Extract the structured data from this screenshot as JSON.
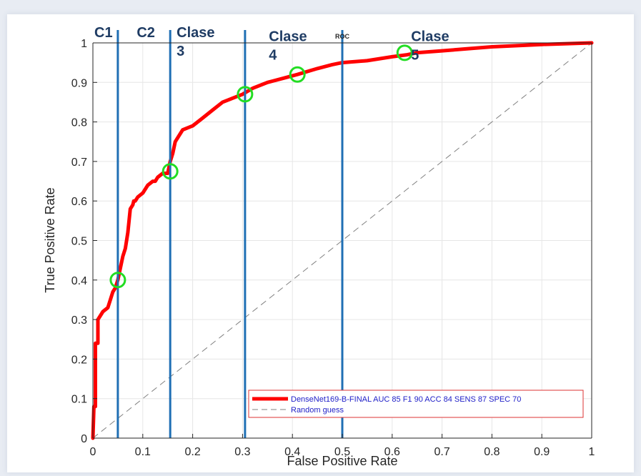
{
  "chart_data": {
    "type": "line",
    "title": "ROC",
    "xlabel": "False Positive Rate",
    "ylabel": "True Positive Rate",
    "xlim": [
      0,
      1
    ],
    "ylim": [
      0,
      1
    ],
    "x_ticks": [
      "0",
      "0.1",
      "0.2",
      "0.3",
      "0.4",
      "0.5",
      "0.6",
      "0.7",
      "0.8",
      "0.9",
      "1"
    ],
    "y_ticks": [
      "0",
      "0.1",
      "0.2",
      "0.3",
      "0.4",
      "0.5",
      "0.6",
      "0.7",
      "0.8",
      "0.9",
      "1"
    ],
    "grid": true,
    "legend_position": "bottom-right",
    "series": [
      {
        "name": "DenseNet169-B-FINAL AUC 85 F1 90 ACC 84 SENS 87 SPEC 70",
        "color": "#ff0000",
        "style": "solid",
        "x": [
          0,
          0.002,
          0.005,
          0.005,
          0.01,
          0.01,
          0.015,
          0.02,
          0.03,
          0.035,
          0.04,
          0.045,
          0.05,
          0.055,
          0.06,
          0.065,
          0.07,
          0.075,
          0.08,
          0.082,
          0.085,
          0.09,
          0.1,
          0.11,
          0.12,
          0.125,
          0.13,
          0.14,
          0.15,
          0.155,
          0.16,
          0.165,
          0.17,
          0.18,
          0.2,
          0.22,
          0.24,
          0.26,
          0.27,
          0.28,
          0.29,
          0.3,
          0.32,
          0.35,
          0.38,
          0.41,
          0.45,
          0.48,
          0.5,
          0.55,
          0.6,
          0.63,
          0.65,
          0.7,
          0.75,
          0.8,
          0.85,
          0.9,
          0.95,
          1.0
        ],
        "y": [
          0,
          0.08,
          0.08,
          0.24,
          0.24,
          0.3,
          0.31,
          0.32,
          0.33,
          0.35,
          0.37,
          0.38,
          0.4,
          0.43,
          0.46,
          0.48,
          0.52,
          0.58,
          0.59,
          0.6,
          0.6,
          0.61,
          0.62,
          0.64,
          0.65,
          0.65,
          0.66,
          0.67,
          0.67,
          0.7,
          0.72,
          0.75,
          0.76,
          0.78,
          0.79,
          0.81,
          0.83,
          0.85,
          0.855,
          0.86,
          0.865,
          0.87,
          0.885,
          0.9,
          0.91,
          0.92,
          0.935,
          0.945,
          0.95,
          0.955,
          0.965,
          0.97,
          0.975,
          0.98,
          0.985,
          0.99,
          0.993,
          0.996,
          0.998,
          1.0
        ]
      },
      {
        "name": "Random guess",
        "color": "#808080",
        "style": "dashed",
        "x": [
          0,
          1
        ],
        "y": [
          0,
          1
        ]
      }
    ],
    "class_lines": {
      "color": "#1f6fb4",
      "x": [
        0.05,
        0.155,
        0.305,
        0.5
      ]
    },
    "class_labels": [
      {
        "lines": [
          "C1"
        ],
        "x": 0.0,
        "y": 1.0
      },
      {
        "lines": [
          "C2"
        ],
        "x": 0.085,
        "y": 1.0
      },
      {
        "lines": [
          "Clase",
          "3"
        ],
        "x": 0.165,
        "y": 1.0
      },
      {
        "lines": [
          "Clase",
          "4"
        ],
        "x": 0.35,
        "y": 0.99
      },
      {
        "lines": [
          "Clase",
          "5"
        ],
        "x": 0.635,
        "y": 0.99
      }
    ],
    "markers": {
      "color": "#22dd22",
      "points": [
        {
          "x": 0.05,
          "y": 0.4
        },
        {
          "x": 0.155,
          "y": 0.675
        },
        {
          "x": 0.305,
          "y": 0.87
        },
        {
          "x": 0.41,
          "y": 0.92
        },
        {
          "x": 0.625,
          "y": 0.975
        }
      ]
    }
  }
}
